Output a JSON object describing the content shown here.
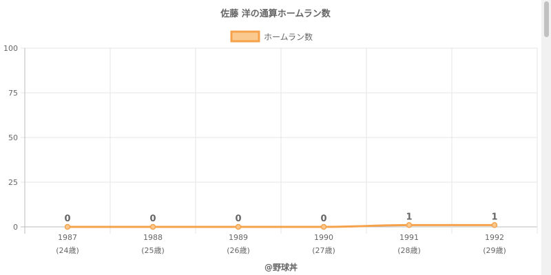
{
  "chart_data": {
    "type": "line",
    "title": "佐藤 洋の通算ホームラン数",
    "legend_position": "top",
    "categories": [
      "1987",
      "1988",
      "1989",
      "1990",
      "1991",
      "1992"
    ],
    "category_sublabels": [
      "(24歳)",
      "(25歳)",
      "(26歳)",
      "(27歳)",
      "(28歳)",
      "(29歳)"
    ],
    "series": [
      {
        "name": "ホームラン数",
        "values": [
          0,
          0,
          0,
          0,
          1,
          1
        ],
        "color": "#f5a24b",
        "fill": "#fac98f"
      }
    ],
    "ylim": [
      0,
      100
    ],
    "yticks": [
      0,
      25,
      50,
      75,
      100
    ],
    "grid": true,
    "data_labels": true
  },
  "footer": "@野球丼"
}
